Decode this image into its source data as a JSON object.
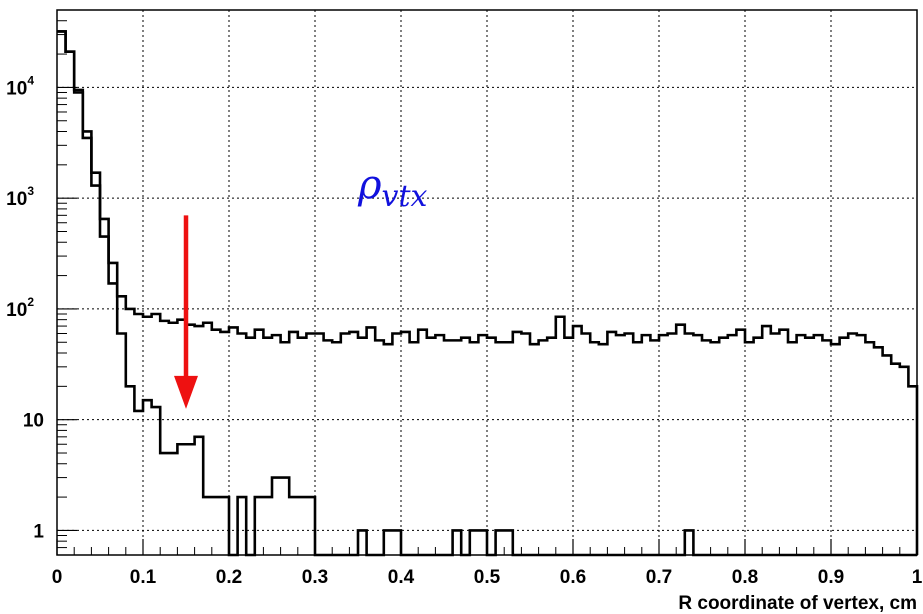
{
  "chart_data": {
    "type": "histogram",
    "title": "",
    "xlabel": "R coordinate of vertex, cm",
    "ylabel": "",
    "xlim": [
      0,
      1
    ],
    "ylim": [
      0.6,
      50000
    ],
    "yscale": "log",
    "grid": true,
    "bin_width": 0.01,
    "x_ticks": [
      {
        "value": 0,
        "label": "0"
      },
      {
        "value": 0.1,
        "label": "0.1"
      },
      {
        "value": 0.2,
        "label": "0.2"
      },
      {
        "value": 0.3,
        "label": "0.3"
      },
      {
        "value": 0.4,
        "label": "0.4"
      },
      {
        "value": 0.5,
        "label": "0.5"
      },
      {
        "value": 0.6,
        "label": "0.6"
      },
      {
        "value": 0.7,
        "label": "0.7"
      },
      {
        "value": 0.8,
        "label": "0.8"
      },
      {
        "value": 0.9,
        "label": "0.9"
      },
      {
        "value": 1,
        "label": "1"
      }
    ],
    "y_ticks": [
      {
        "value": 1,
        "base": "1",
        "exp": ""
      },
      {
        "value": 10,
        "base": "10",
        "exp": ""
      },
      {
        "value": 100,
        "base": "10",
        "exp": "2"
      },
      {
        "value": 1000,
        "base": "10",
        "exp": "3"
      },
      {
        "value": 10000,
        "base": "10",
        "exp": "4"
      }
    ],
    "series": [
      {
        "color": "#000000",
        "values": [
          32000,
          21000,
          9500,
          4000,
          1700,
          650,
          260,
          130,
          100,
          90,
          85,
          90,
          78,
          75,
          80,
          72,
          70,
          75,
          65,
          62,
          68,
          60,
          55,
          65,
          55,
          58,
          50,
          62,
          55,
          60,
          60,
          52,
          50,
          60,
          62,
          55,
          68,
          52,
          48,
          60,
          62,
          50,
          65,
          55,
          58,
          52,
          52,
          55,
          50,
          58,
          55,
          50,
          50,
          62,
          60,
          48,
          52,
          55,
          85,
          55,
          70,
          60,
          50,
          48,
          62,
          58,
          60,
          50,
          58,
          52,
          58,
          60,
          72,
          60,
          58,
          52,
          50,
          55,
          58,
          65,
          50,
          55,
          70,
          60,
          65,
          50,
          58,
          55,
          58,
          52,
          48,
          55,
          60,
          58,
          50,
          45,
          38,
          32,
          30,
          20
        ]
      },
      {
        "color": "#000000",
        "values": [
          32000,
          21000,
          9000,
          3500,
          1300,
          450,
          170,
          60,
          20,
          12,
          15,
          13,
          5,
          5,
          6,
          6,
          7,
          2,
          2,
          2,
          0,
          2,
          0,
          2,
          2,
          3,
          3,
          2,
          2,
          2,
          0,
          0,
          0,
          0,
          0,
          1,
          0,
          0,
          1,
          1,
          0,
          0,
          0,
          0,
          0,
          0,
          1,
          0,
          1,
          1,
          0,
          1,
          1,
          0,
          0,
          0,
          0,
          0,
          0,
          0,
          0,
          0,
          0,
          0,
          0,
          0,
          0,
          0,
          0,
          0,
          0,
          0,
          0,
          1,
          0,
          0,
          0,
          0,
          0,
          0,
          0,
          0,
          0,
          0,
          0,
          0,
          0,
          0,
          0,
          0,
          0,
          0,
          0,
          0,
          0,
          0,
          0,
          0,
          0,
          0
        ]
      }
    ],
    "annotations": [
      {
        "type": "text",
        "text": "ρvtx",
        "base": "ρ",
        "sub": "vtx",
        "color": "#1111dd",
        "x": 0.35,
        "y": 1000
      },
      {
        "type": "arrow",
        "color": "#ee1111",
        "x": 0.15,
        "y_from": 700,
        "y_to": 12
      }
    ]
  }
}
